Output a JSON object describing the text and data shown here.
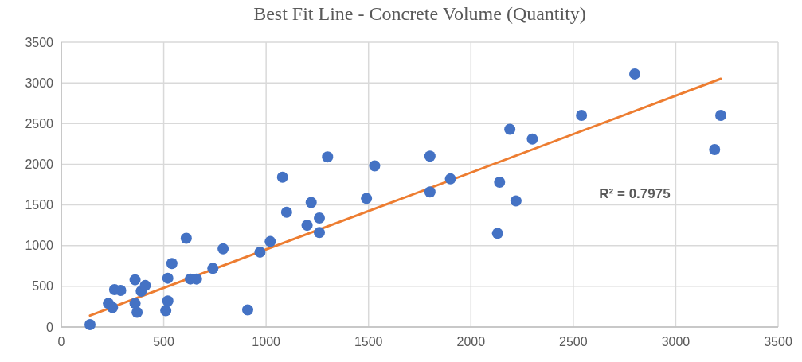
{
  "chart_data": {
    "type": "scatter",
    "title": "Best Fit Line - Concrete Volume (Quantity)",
    "series": [
      {
        "color": "#4472c4",
        "marker": "circle",
        "x": [
          140,
          230,
          250,
          260,
          290,
          360,
          360,
          370,
          390,
          410,
          520,
          520,
          510,
          540,
          610,
          630,
          660,
          740,
          790,
          910,
          970,
          1020,
          1100,
          1220,
          1260,
          1200,
          1260,
          1080,
          1300,
          1530,
          1490,
          1800,
          1900,
          1800,
          2800,
          2540,
          2190,
          2300,
          3220,
          3190,
          2140,
          2220,
          2130
        ],
        "values": [
          30,
          290,
          240,
          460,
          450,
          580,
          290,
          180,
          440,
          510,
          600,
          320,
          200,
          780,
          1090,
          590,
          590,
          720,
          960,
          210,
          920,
          1050,
          1410,
          1530,
          1340,
          1250,
          1160,
          1840,
          2090,
          1980,
          1580,
          2100,
          1820,
          1660,
          3110,
          2600,
          2430,
          2310,
          2600,
          2180,
          1780,
          1550,
          1150
        ]
      },
      {
        "type": "line",
        "color": "#ed7d31",
        "x": [
          140,
          3220
        ],
        "values": [
          140,
          3050
        ]
      }
    ],
    "xlim": [
      0,
      3500
    ],
    "xticks": [
      0,
      500,
      1000,
      1500,
      2000,
      2500,
      3000,
      3500
    ],
    "ylim": [
      0,
      3500
    ],
    "yticks": [
      0,
      500,
      1000,
      1500,
      2000,
      2500,
      3000,
      3500
    ],
    "grid": true,
    "annotations": [
      "R² = 0.7975"
    ]
  }
}
